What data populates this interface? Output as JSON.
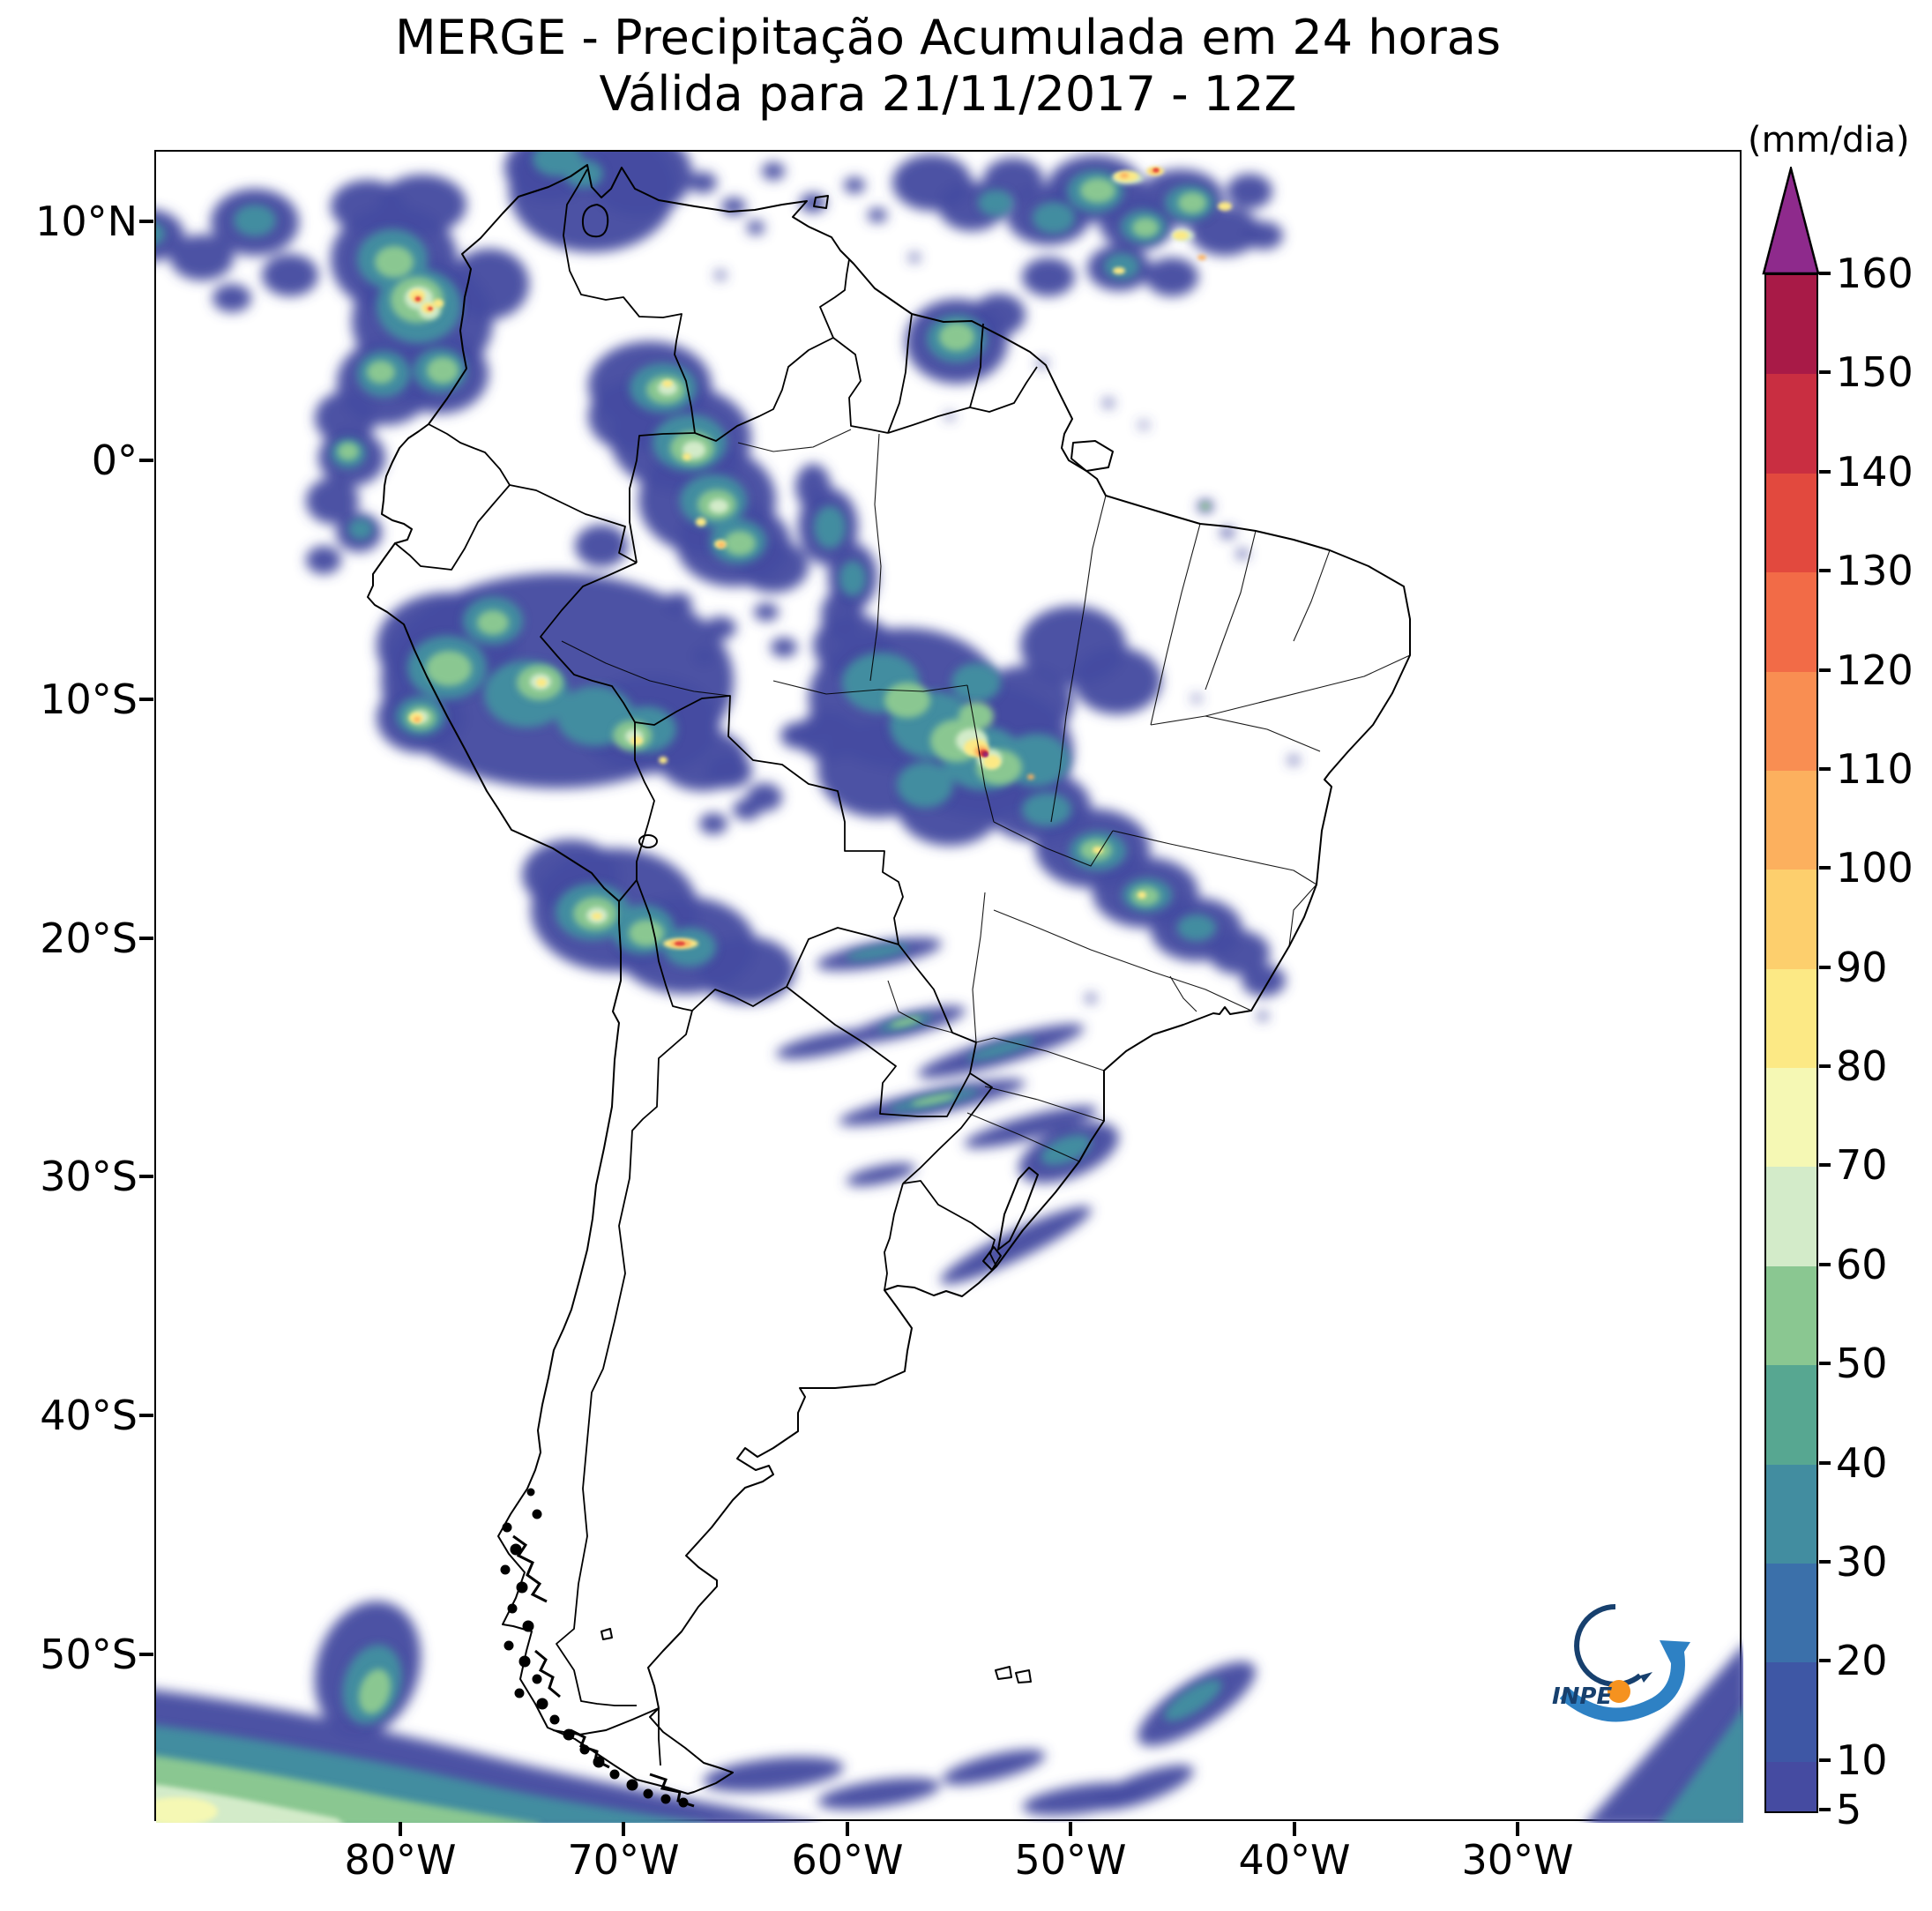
{
  "title": {
    "line1": "MERGE - Precipitação Acumulada em 24 horas",
    "line2": "Válida para 21/11/2017 - 12Z"
  },
  "axes": {
    "y_ticks": [
      "10°N",
      "0°",
      "10°S",
      "20°S",
      "30°S",
      "40°S",
      "50°S"
    ],
    "x_ticks": [
      "80°W",
      "70°W",
      "60°W",
      "50°W",
      "40°W",
      "30°W"
    ]
  },
  "colorbar": {
    "unit": "(mm/dia)",
    "min": 5,
    "max": 160,
    "tick_labels": [
      "160",
      "150",
      "140",
      "130",
      "120",
      "110",
      "100",
      "90",
      "80",
      "70",
      "60",
      "50",
      "40",
      "30",
      "20",
      "10",
      "5"
    ],
    "over_arrow_color": "#8e2a8c",
    "segments": [
      {
        "from": 5,
        "to": 10,
        "color": "#454ba1"
      },
      {
        "from": 10,
        "to": 20,
        "color": "#3e57a5"
      },
      {
        "from": 20,
        "to": 30,
        "color": "#3b70aa"
      },
      {
        "from": 30,
        "to": 40,
        "color": "#428da0"
      },
      {
        "from": 40,
        "to": 50,
        "color": "#57a791"
      },
      {
        "from": 50,
        "to": 60,
        "color": "#8ac791"
      },
      {
        "from": 60,
        "to": 70,
        "color": "#d3ebc9"
      },
      {
        "from": 70,
        "to": 80,
        "color": "#f5f8b4"
      },
      {
        "from": 80,
        "to": 90,
        "color": "#fce985"
      },
      {
        "from": 90,
        "to": 100,
        "color": "#fdcf6d"
      },
      {
        "from": 100,
        "to": 110,
        "color": "#fcb05e"
      },
      {
        "from": 110,
        "to": 120,
        "color": "#f98e52"
      },
      {
        "from": 120,
        "to": 130,
        "color": "#f26b47"
      },
      {
        "from": 130,
        "to": 140,
        "color": "#e2493e"
      },
      {
        "from": 140,
        "to": 150,
        "color": "#c92e41"
      },
      {
        "from": 150,
        "to": 160,
        "color": "#a81a47"
      }
    ]
  },
  "logo": {
    "label": "INPE",
    "navy": "#17406e",
    "blue": "#2e81c4",
    "orange": "#f5921f"
  },
  "chart_data": {
    "type": "heatmap",
    "title": "MERGE - Precipitação Acumulada em 24 horas",
    "subtitle": "Válida para 21/11/2017 - 12Z",
    "unit": "mm/dia",
    "x_tick_labels": [
      "80°W",
      "70°W",
      "60°W",
      "50°W",
      "40°W",
      "30°W"
    ],
    "y_tick_labels": [
      "10°N",
      "0°",
      "10°S",
      "20°S",
      "30°S",
      "40°S",
      "50°S"
    ],
    "colorbar_ticks": [
      160,
      150,
      140,
      130,
      120,
      110,
      100,
      90,
      80,
      70,
      60,
      50,
      40,
      30,
      20,
      10,
      5
    ],
    "legend_position": "right",
    "grid": false
  }
}
